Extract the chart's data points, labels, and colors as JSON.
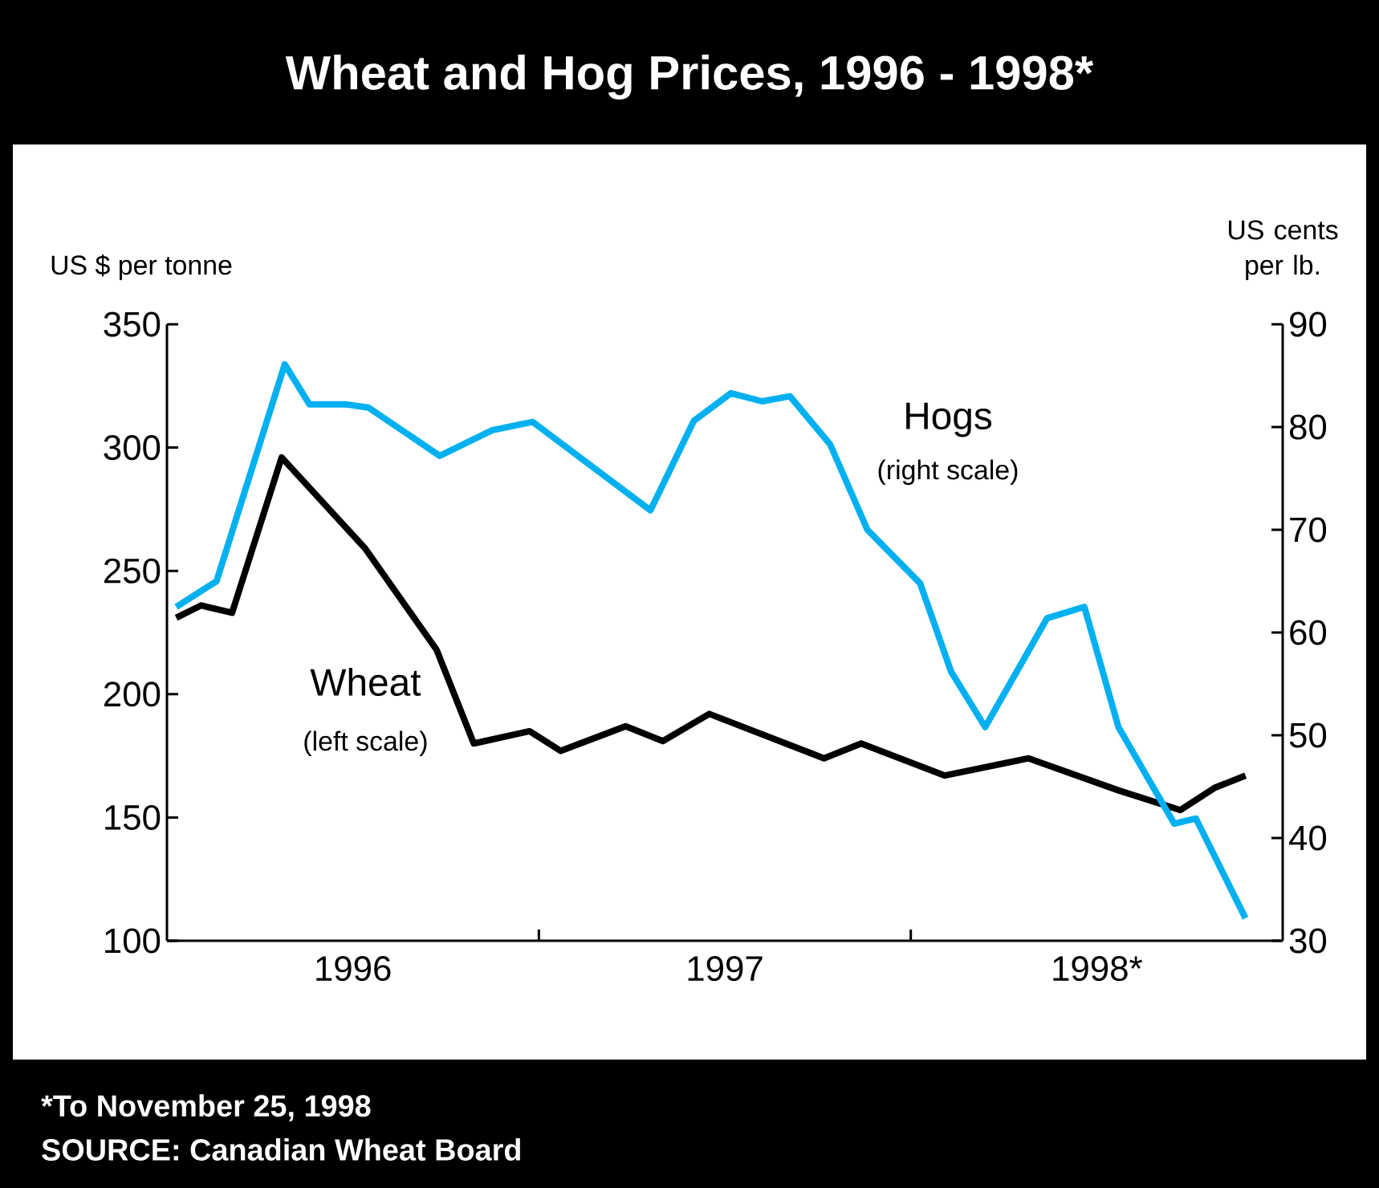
{
  "chart_data": {
    "type": "line",
    "title": "Wheat and Hog Prices, 1996 - 1998*",
    "ylabel": "US $ per tonne",
    "y2label": "US cents per lb.",
    "xlim": [
      "1996-01-01",
      "1999-01-01"
    ],
    "xticks": [
      {
        "value": "1996-07-01",
        "label": "1996"
      },
      {
        "value": "1997-01-01",
        "label": null
      },
      {
        "value": "1997-07-01",
        "label": "1997"
      },
      {
        "value": "1998-01-01",
        "label": null
      },
      {
        "value": "1998-07-01",
        "label": "1998*"
      }
    ],
    "ylim": [
      100,
      350
    ],
    "yticks": [
      100,
      150,
      200,
      250,
      300,
      350
    ],
    "y2lim": [
      30,
      90
    ],
    "y2ticks": [
      30,
      40,
      50,
      60,
      70,
      80,
      90
    ],
    "series": [
      {
        "name": "Wheat",
        "color": "#000000",
        "x": [
          "1996-01-10",
          "1996-02-04",
          "1996-03-04",
          "1996-04-22",
          "1996-07-13",
          "1996-09-22",
          "1996-10-28",
          "1996-12-22",
          "1997-01-22",
          "1997-03-25",
          "1997-05-01",
          "1997-06-16",
          "1997-10-07",
          "1997-11-13",
          "1998-02-04",
          "1998-04-25",
          "1998-07-22",
          "1998-09-22",
          "1998-10-25",
          "1998-11-25"
        ],
        "values": [
          231,
          236,
          233,
          296,
          259,
          218,
          180,
          185,
          177,
          187,
          181,
          192,
          174,
          180,
          167,
          174,
          161,
          153,
          162,
          167
        ]
      },
      {
        "name": "Hogs",
        "color": "#00b0f0",
        "axis": "y2",
        "x": [
          "1996-01-10",
          "1996-02-19",
          "1996-04-25",
          "1996-05-19",
          "1996-06-25",
          "1996-07-16",
          "1996-09-25",
          "1996-11-16",
          "1996-12-25",
          "1997-04-19",
          "1997-06-01",
          "1997-07-07",
          "1997-08-07",
          "1997-09-04",
          "1997-10-13",
          "1997-11-19",
          "1998-01-10",
          "1998-02-10",
          "1998-03-13",
          "1998-05-13",
          "1998-06-19",
          "1998-07-22",
          "1998-09-16",
          "1998-10-07",
          "1998-11-25"
        ],
        "values": [
          62.5,
          65,
          86.1,
          82.2,
          82.2,
          81.9,
          77.2,
          79.7,
          80.5,
          71.9,
          80.6,
          83.3,
          82.5,
          83,
          78.3,
          70,
          64.8,
          56.2,
          50.8,
          61.4,
          62.5,
          50.8,
          41.4,
          41.9,
          32.2
        ]
      }
    ],
    "annotations": [
      "(left scale)",
      "(right scale)",
      "*To November 25, 1998",
      "SOURCE:  Canadian Wheat Board"
    ]
  }
}
